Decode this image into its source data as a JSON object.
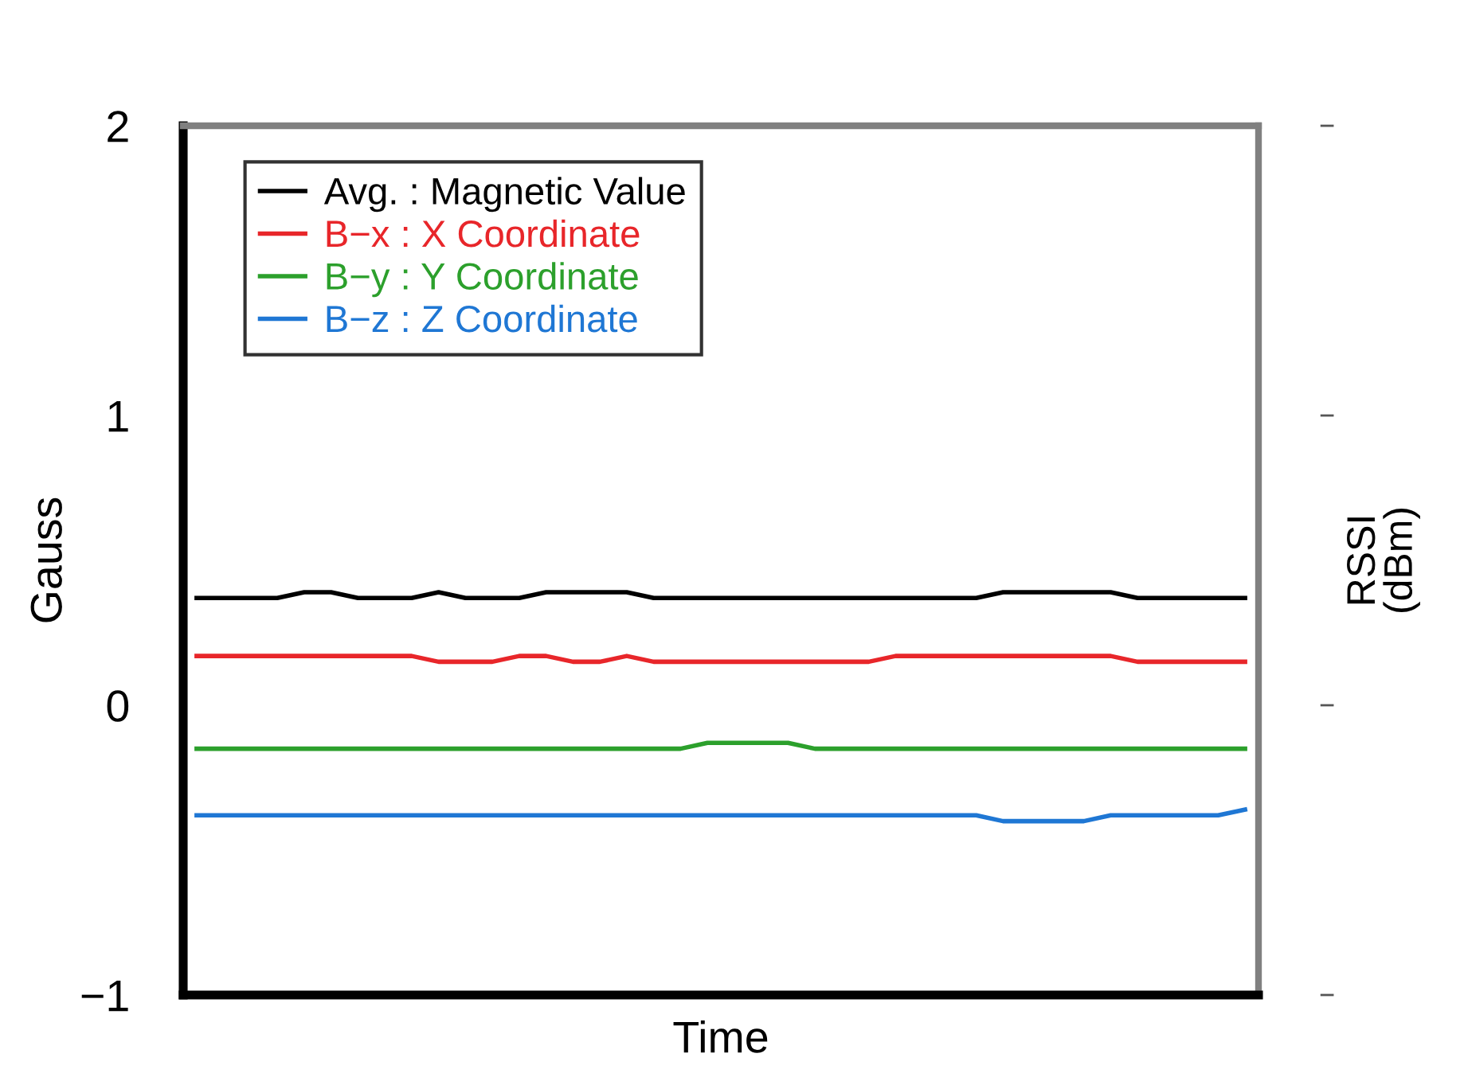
{
  "chart_data": {
    "type": "line",
    "xlabel": "Time",
    "ylabel": "Gauss",
    "y2label": "RSSI\n(dBm)",
    "categories": [
      null,
      null,
      null,
      null,
      null,
      null,
      null,
      null,
      null,
      null,
      null,
      null,
      null,
      null,
      null,
      null,
      null,
      null,
      null,
      null,
      null,
      null,
      null,
      null,
      null,
      null,
      null,
      null,
      null,
      null,
      null,
      null,
      null,
      null,
      null,
      null,
      null,
      null,
      null,
      null
    ],
    "series": [
      {
        "name": "Avg. : Magnetic Value",
        "color": "#000000",
        "values": [
          0.37,
          0.37,
          0.37,
          0.37,
          0.39,
          0.39,
          0.37,
          0.37,
          0.37,
          0.39,
          0.37,
          0.37,
          0.37,
          0.39,
          0.39,
          0.39,
          0.39,
          0.37,
          0.37,
          0.37,
          0.37,
          0.37,
          0.37,
          0.37,
          0.37,
          0.37,
          0.37,
          0.37,
          0.37,
          0.37,
          0.39,
          0.39,
          0.39,
          0.39,
          0.39,
          0.37,
          0.37,
          0.37,
          0.37,
          0.37
        ]
      },
      {
        "name": "B−x : X Coordinate",
        "color": "#e8262a",
        "values": [
          0.17,
          0.17,
          0.17,
          0.17,
          0.17,
          0.17,
          0.17,
          0.17,
          0.17,
          0.15,
          0.15,
          0.15,
          0.17,
          0.17,
          0.15,
          0.15,
          0.17,
          0.15,
          0.15,
          0.15,
          0.15,
          0.15,
          0.15,
          0.15,
          0.15,
          0.15,
          0.17,
          0.17,
          0.17,
          0.17,
          0.17,
          0.17,
          0.17,
          0.17,
          0.17,
          0.15,
          0.15,
          0.15,
          0.15,
          0.15
        ]
      },
      {
        "name": "B−y : Y Coordinate",
        "color": "#2ca02c",
        "values": [
          -0.15,
          -0.15,
          -0.15,
          -0.15,
          -0.15,
          -0.15,
          -0.15,
          -0.15,
          -0.15,
          -0.15,
          -0.15,
          -0.15,
          -0.15,
          -0.15,
          -0.15,
          -0.15,
          -0.15,
          -0.15,
          -0.15,
          -0.13,
          -0.13,
          -0.13,
          -0.13,
          -0.15,
          -0.15,
          -0.15,
          -0.15,
          -0.15,
          -0.15,
          -0.15,
          -0.15,
          -0.15,
          -0.15,
          -0.15,
          -0.15,
          -0.15,
          -0.15,
          -0.15,
          -0.15,
          -0.15
        ]
      },
      {
        "name": "B−z : Z Coordinate",
        "color": "#1f77d4",
        "values": [
          -0.38,
          -0.38,
          -0.38,
          -0.38,
          -0.38,
          -0.38,
          -0.38,
          -0.38,
          -0.38,
          -0.38,
          -0.38,
          -0.38,
          -0.38,
          -0.38,
          -0.38,
          -0.38,
          -0.38,
          -0.38,
          -0.38,
          -0.38,
          -0.38,
          -0.38,
          -0.38,
          -0.38,
          -0.38,
          -0.38,
          -0.38,
          -0.38,
          -0.38,
          -0.38,
          -0.4,
          -0.4,
          -0.4,
          -0.4,
          -0.38,
          -0.38,
          -0.38,
          -0.38,
          -0.38,
          -0.36
        ]
      }
    ],
    "ylim": [
      -1,
      2
    ],
    "yticks": [
      -1,
      0,
      1,
      2
    ],
    "grid": false,
    "legend": "top left",
    "marker": "none",
    "line_style": "solid"
  }
}
